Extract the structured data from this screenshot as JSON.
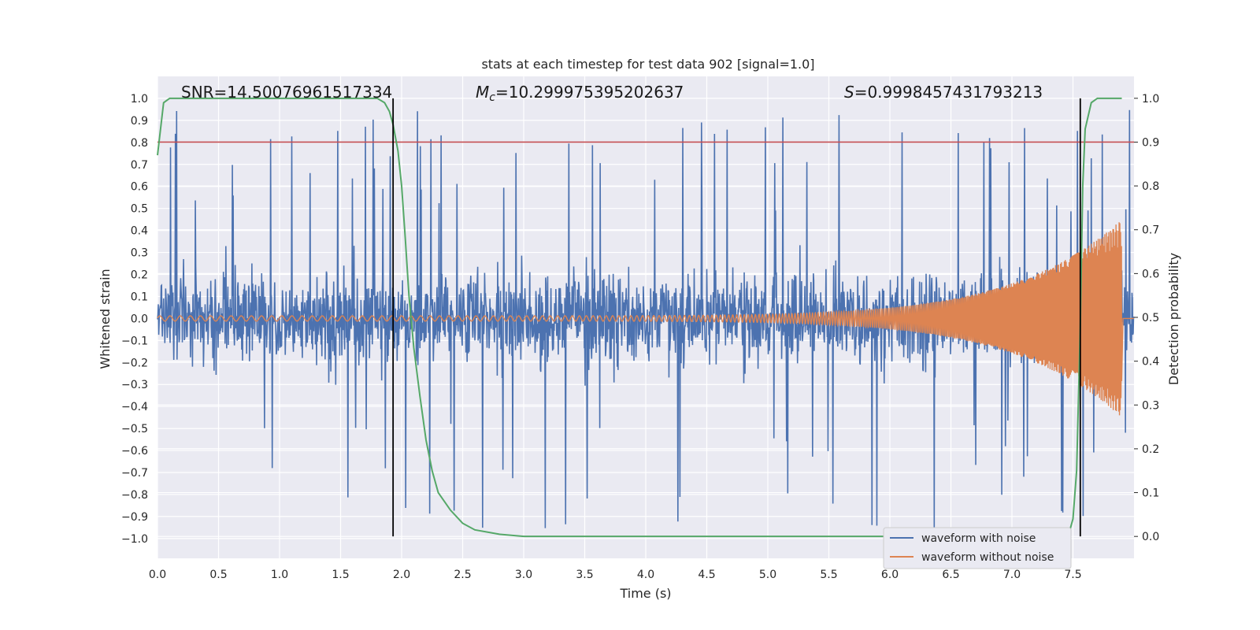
{
  "chart_data": {
    "type": "line",
    "title": "stats at each timestep for test data 902 [signal=1.0]",
    "xlabel": "Time (s)",
    "ylabel": "Whitened strain",
    "ylabel_right": "Detection probability",
    "xlim": [
      0.0,
      8.0
    ],
    "ylim": [
      -1.09,
      1.1
    ],
    "ylim_right": [
      -0.05,
      1.05
    ],
    "x_ticks": [
      "0.0",
      "0.5",
      "1.0",
      "1.5",
      "2.0",
      "2.5",
      "3.0",
      "3.5",
      "4.0",
      "4.5",
      "5.0",
      "5.5",
      "6.0",
      "6.5",
      "7.0",
      "7.5"
    ],
    "x_tick_values": [
      0.0,
      0.5,
      1.0,
      1.5,
      2.0,
      2.5,
      3.0,
      3.5,
      4.0,
      4.5,
      5.0,
      5.5,
      6.0,
      6.5,
      7.0,
      7.5
    ],
    "y_ticks": [
      "1.0",
      "0.9",
      "0.8",
      "0.7",
      "0.6",
      "0.5",
      "0.4",
      "0.3",
      "0.2",
      "0.1",
      "0.0",
      "−0.1",
      "−0.2",
      "−0.3",
      "−0.4",
      "−0.5",
      "−0.6",
      "−0.7",
      "−0.8",
      "−0.9",
      "−1.0"
    ],
    "y_tick_values": [
      1.0,
      0.9,
      0.8,
      0.7,
      0.6,
      0.5,
      0.4,
      0.3,
      0.2,
      0.1,
      0.0,
      -0.1,
      -0.2,
      -0.3,
      -0.4,
      -0.5,
      -0.6,
      -0.7,
      -0.8,
      -0.9,
      -1.0
    ],
    "y_ticks_right": [
      "1.0",
      "0.9",
      "0.8",
      "0.7",
      "0.6",
      "0.5",
      "0.4",
      "0.3",
      "0.2",
      "0.1",
      "0.0"
    ],
    "y_tick_values_right": [
      1.0,
      0.9,
      0.8,
      0.7,
      0.6,
      0.5,
      0.4,
      0.3,
      0.2,
      0.1,
      0.0
    ],
    "annotations": {
      "snr": "SNR=14.50076961517334",
      "mc_symbol": "M",
      "mc_sub": "c",
      "mc_value": "=10.299975395202637",
      "s_symbol": "S",
      "s_value": "=0.9998457431793213"
    },
    "threshold": {
      "value": 0.9,
      "axis": "right",
      "color": "#c44e52"
    },
    "vertical_lines": [
      1.93,
      7.56
    ],
    "series": [
      {
        "name": "waveform with noise",
        "color": "#4c72b0",
        "noise_std": 0.18,
        "spike_max": 0.96,
        "duration": 8.0
      },
      {
        "name": "waveform without noise",
        "color": "#dd8452",
        "start_amp": 0.012,
        "peak_amp": 0.45,
        "end": 7.9,
        "f0": 12,
        "f_end": 160
      },
      {
        "name": "detection probability",
        "axis": "right",
        "color": "#55a868",
        "x": [
          0.0,
          0.05,
          0.1,
          0.2,
          0.4,
          1.0,
          1.5,
          1.8,
          1.86,
          1.9,
          1.93,
          1.97,
          2.0,
          2.03,
          2.06,
          2.1,
          2.15,
          2.2,
          2.25,
          2.3,
          2.4,
          2.5,
          2.6,
          2.8,
          3.0,
          5.0,
          7.0,
          7.4,
          7.47,
          7.5,
          7.53,
          7.56,
          7.58,
          7.6,
          7.65,
          7.7,
          7.8,
          7.9
        ],
        "y": [
          0.87,
          0.99,
          1.0,
          1.0,
          1.0,
          1.0,
          1.0,
          1.0,
          0.99,
          0.97,
          0.94,
          0.88,
          0.8,
          0.68,
          0.55,
          0.43,
          0.32,
          0.22,
          0.15,
          0.1,
          0.06,
          0.03,
          0.015,
          0.005,
          0.0,
          0.0,
          0.0,
          0.0,
          0.01,
          0.04,
          0.15,
          0.48,
          0.8,
          0.93,
          0.99,
          1.0,
          1.0,
          1.0
        ]
      }
    ],
    "legend": {
      "location": "bottom-right",
      "entries": [
        "waveform with noise",
        "waveform without noise"
      ]
    }
  }
}
